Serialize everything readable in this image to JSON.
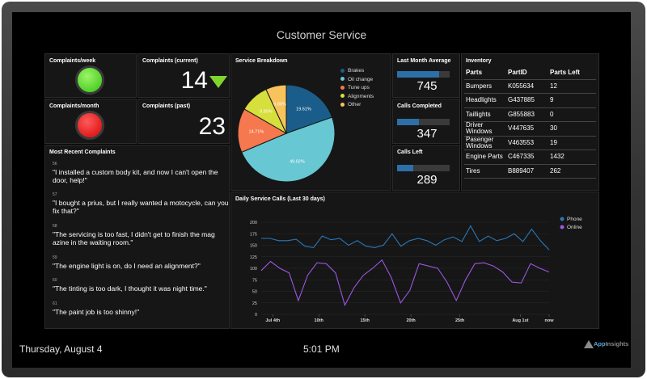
{
  "title": "Customer Service",
  "complaints_week": {
    "label": "Complaints/week",
    "status_color": "#6fe33a"
  },
  "complaints_month": {
    "label": "Complaints/month",
    "status_color": "#f12a2a"
  },
  "complaints_current": {
    "label": "Complaints (current)",
    "value": "14",
    "trend": "down",
    "trend_color": "#7fd52e"
  },
  "complaints_past": {
    "label": "Complaints (past)",
    "value": "23"
  },
  "recent_complaints": {
    "label": "Most Recent Complaints",
    "items": [
      {
        "num": "56",
        "text": "\"I installed a custom body kit, and now I can't open the door, help!\""
      },
      {
        "num": "57",
        "text": "\"I bought a prius, but I really wanted a motocycle, can you fix that?\""
      },
      {
        "num": "58",
        "text": "\"The servicing is too fast, I didn't get to finish the mag azine in the waiting room.\""
      },
      {
        "num": "59",
        "text": "\"The engine light is on, do I need an alignment?\""
      },
      {
        "num": "60",
        "text": "\"The tinting is too dark, I thought it was night time.\""
      },
      {
        "num": "61",
        "text": "\"The paint job is too shinny!\""
      }
    ]
  },
  "metrics": {
    "last_month": {
      "label": "Last Month Average",
      "value": "745",
      "fill": 0.8
    },
    "calls_completed": {
      "label": "Calls Completed",
      "value": "347",
      "fill": 0.42
    },
    "calls_left": {
      "label": "Calls Left",
      "value": "289",
      "fill": 0.3
    }
  },
  "inventory": {
    "label": "Inventory",
    "headers": [
      "Parts",
      "PartID",
      "Parts Left"
    ],
    "rows": [
      [
        "Bumpers",
        "K055634",
        "12"
      ],
      [
        "Headlights",
        "G437885",
        "9"
      ],
      [
        "Taillights",
        "G855883",
        "0"
      ],
      [
        "Driver Windows",
        "V447635",
        "30"
      ],
      [
        "Pasenger Windows",
        "V463553",
        "19"
      ],
      [
        "Engine Parts",
        "C467335",
        "1432"
      ],
      [
        "Tires",
        "B889407",
        "262"
      ]
    ]
  },
  "chart_data": [
    {
      "type": "pie",
      "title": "Service Breakdown",
      "categories": [
        "Brakes",
        "Oil change",
        "Tune ups",
        "Alignments",
        "Other"
      ],
      "values": [
        19.61,
        49.02,
        14.71,
        9.8,
        6.86
      ],
      "labels": [
        "19.61%",
        "49.02%",
        "14.71%",
        "9.80%",
        "6.86%"
      ],
      "colors": [
        "#1a5d8a",
        "#67c7d2",
        "#f5784f",
        "#d6df3c",
        "#f7c35c"
      ],
      "legend": "right"
    },
    {
      "type": "line",
      "title": "Daily Service Calls (Last 30 days)",
      "xlabel": "",
      "ylabel": "",
      "x_ticks": [
        "Jul 4th",
        "10th",
        "15th",
        "20th",
        "25th",
        "Aug 1st",
        "now"
      ],
      "ylim": [
        0,
        200
      ],
      "y_ticks": [
        0,
        25,
        50,
        75,
        100,
        125,
        150,
        175,
        200
      ],
      "grid": true,
      "legend": "top-right",
      "series": [
        {
          "name": "Phone",
          "color": "#2b78b7",
          "values": [
            165,
            165,
            160,
            160,
            163,
            148,
            145,
            170,
            162,
            165,
            150,
            160,
            148,
            145,
            150,
            175,
            148,
            160,
            165,
            160,
            150,
            162,
            168,
            158,
            192,
            158,
            170,
            160,
            165,
            175,
            158,
            185,
            160,
            140
          ]
        },
        {
          "name": "Online",
          "color": "#9a57e0",
          "values": [
            95,
            115,
            100,
            90,
            30,
            85,
            112,
            110,
            90,
            20,
            58,
            85,
            100,
            118,
            80,
            25,
            52,
            110,
            105,
            100,
            70,
            30,
            75,
            110,
            112,
            105,
            92,
            70,
            68,
            110,
            100,
            92
          ]
        }
      ]
    }
  ],
  "footer": {
    "date": "Thursday, August 4",
    "time": "5:01 PM",
    "brand_a": "App",
    "brand_b": "Insights"
  }
}
